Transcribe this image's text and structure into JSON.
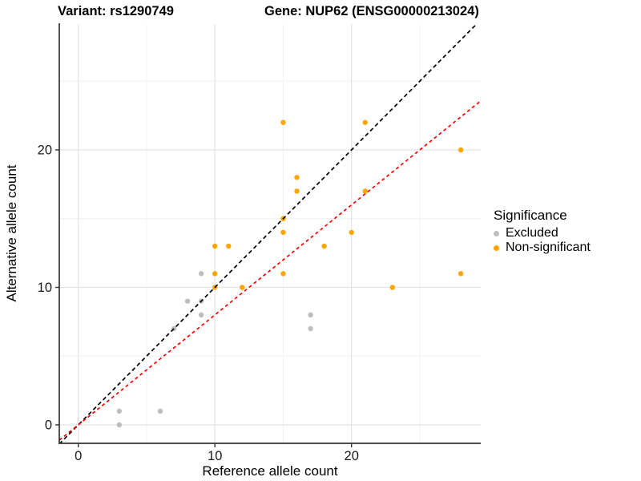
{
  "titles": {
    "variant": "Variant: rs1290749",
    "gene": "Gene: NUP62 (ENSG00000213024)"
  },
  "chart_data": {
    "type": "scatter",
    "title": "Variant: rs1290749 — Gene: NUP62 (ENSG00000213024)",
    "xlabel": "Reference allele count",
    "ylabel": "Alternative allele count",
    "xlim": [
      -1.4,
      29.5
    ],
    "ylim": [
      -1.4,
      29.2
    ],
    "grid": "on",
    "x_major_ticks": [
      0,
      10,
      20
    ],
    "x_minor_ticks": [
      5,
      15,
      25
    ],
    "y_major_ticks": [
      0,
      10,
      20
    ],
    "y_minor_ticks": [
      5,
      15,
      25
    ],
    "legend": {
      "title": "Significance",
      "position": "right",
      "entries": [
        {
          "label": "Excluded",
          "color": "#BEBEBE"
        },
        {
          "label": "Non-significant",
          "color": "#FFA500"
        }
      ]
    },
    "lines": [
      {
        "name": "identity-line",
        "slope": 1,
        "intercept": 0,
        "color": "#000000",
        "dash": "5 3.6",
        "width": 1.7
      },
      {
        "name": "fit-line",
        "slope": 0.8,
        "intercept": 0,
        "color": "#FF0000",
        "dash": "4 3.6",
        "width": 1.7
      }
    ],
    "series": [
      {
        "name": "Excluded",
        "color": "#BEBEBE",
        "points": [
          [
            3,
            0
          ],
          [
            3,
            1
          ],
          [
            6,
            1
          ],
          [
            7,
            7
          ],
          [
            8,
            9
          ],
          [
            9,
            8
          ],
          [
            9,
            9
          ],
          [
            9,
            11
          ],
          [
            17,
            7
          ],
          [
            17,
            8
          ]
        ]
      },
      {
        "name": "Non-significant",
        "color": "#FFA500",
        "points": [
          [
            10,
            10
          ],
          [
            10,
            11
          ],
          [
            10,
            13
          ],
          [
            11,
            13
          ],
          [
            12,
            10
          ],
          [
            15,
            11
          ],
          [
            15,
            14
          ],
          [
            15,
            15
          ],
          [
            15,
            22
          ],
          [
            16,
            17
          ],
          [
            16,
            18
          ],
          [
            18,
            13
          ],
          [
            20,
            14
          ],
          [
            21,
            17
          ],
          [
            21,
            22
          ],
          [
            23,
            10
          ],
          [
            28,
            11
          ],
          [
            28,
            20
          ]
        ]
      }
    ],
    "colors": {
      "grid_major": "#E4E4E4",
      "grid_minor": "#F0F0F0",
      "axis_line": "#333333",
      "tick_text": "#1A1A1A"
    }
  }
}
